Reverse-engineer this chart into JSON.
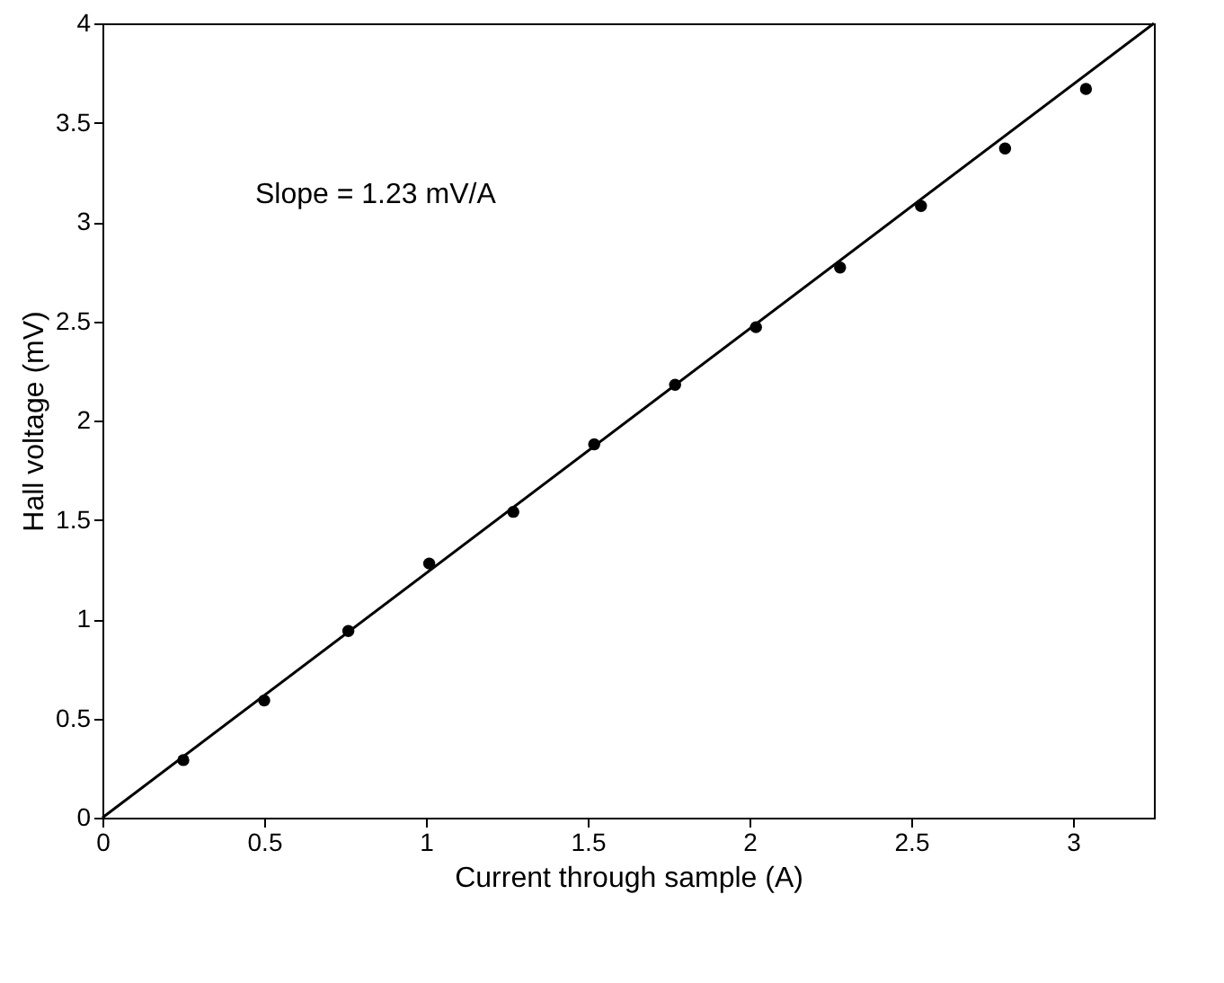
{
  "chart_data": {
    "type": "scatter",
    "xlabel": "Current through sample (A)",
    "ylabel": "Hall voltage (mV)",
    "annotations": [
      "Slope = 1.23 mV/A"
    ],
    "xlim": [
      0,
      3.25
    ],
    "ylim": [
      0,
      4
    ],
    "xticks": [
      0,
      0.5,
      1,
      1.5,
      2,
      2.5,
      3
    ],
    "yticks": [
      0,
      0.5,
      1,
      1.5,
      2,
      2.5,
      3,
      3.5,
      4
    ],
    "grid": false,
    "series": [
      {
        "type": "scatter",
        "color": "#000000",
        "marker": "circle",
        "x": [
          0.25,
          0.5,
          0.76,
          1.01,
          1.27,
          1.52,
          1.77,
          2.02,
          2.28,
          2.53,
          2.79,
          3.04
        ],
        "values": [
          0.29,
          0.59,
          0.94,
          1.28,
          1.54,
          1.88,
          2.18,
          2.47,
          2.77,
          3.08,
          3.37,
          3.67
        ]
      },
      {
        "type": "line",
        "color": "#000000",
        "line_style": "solid",
        "x": [
          0,
          3.25
        ],
        "values": [
          0,
          4.0
        ]
      }
    ]
  }
}
